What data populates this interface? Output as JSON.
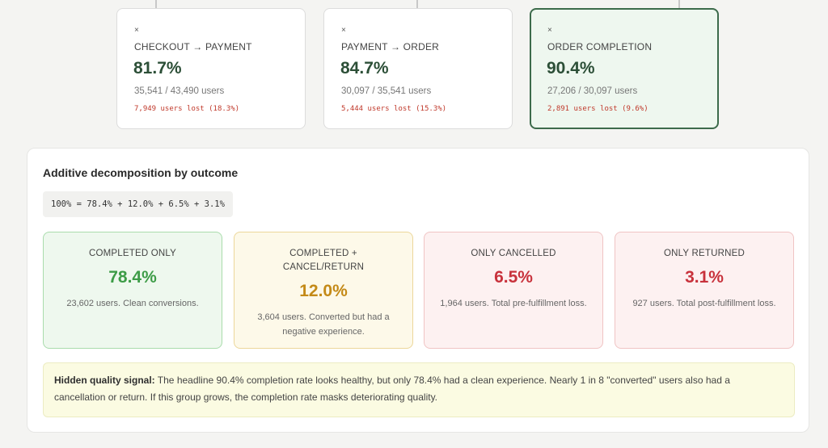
{
  "steps": [
    {
      "close": "×",
      "title": "CHECKOUT → PAYMENT",
      "pct": "81.7%",
      "users": "35,541 / 43,490 users",
      "lost": "7,949 users lost (18.3%)"
    },
    {
      "close": "×",
      "title": "PAYMENT → ORDER",
      "pct": "84.7%",
      "users": "30,097 / 35,541 users",
      "lost": "5,444 users lost (15.3%)"
    },
    {
      "close": "×",
      "title": "ORDER COMPLETION",
      "pct": "90.4%",
      "users": "27,206 / 30,097 users",
      "lost": "2,891 users lost (9.6%)"
    }
  ],
  "decomposition": {
    "title": "Additive decomposition by outcome",
    "formula": "100% = 78.4% + 12.0% + 6.5% + 3.1%",
    "outcomes": [
      {
        "label": "COMPLETED ONLY",
        "value": "78.4%",
        "desc": "23,602 users. Clean conversions."
      },
      {
        "label": "COMPLETED + CANCEL/RETURN",
        "value": "12.0%",
        "desc": "3,604 users. Converted but had a negative experience."
      },
      {
        "label": "ONLY CANCELLED",
        "value": "6.5%",
        "desc": "1,964 users. Total pre-fulfillment loss."
      },
      {
        "label": "ONLY RETURNED",
        "value": "3.1%",
        "desc": "927 users. Total post-fulfillment loss."
      }
    ]
  },
  "signal": {
    "label": "Hidden quality signal:",
    "text": " The headline 90.4% completion rate looks healthy, but only 78.4% had a clean experience. Nearly 1 in 8 \"converted\" users also had a cancellation or return. If this group grows, the completion rate masks deteriorating quality."
  },
  "colors": {
    "highlight_border": "#3c6b4b",
    "green": "#3d9c47",
    "yellow": "#c48a17",
    "red": "#c8323c",
    "lost_red": "#c0392b"
  }
}
